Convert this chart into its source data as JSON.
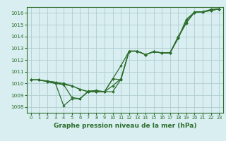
{
  "xlabel": "Graphe pression niveau de la mer (hPa)",
  "background_color": "#d8eef0",
  "grid_color": "#b0cdd0",
  "line_color": "#2d6e2d",
  "ylim": [
    1007.5,
    1016.5
  ],
  "xlim": [
    -0.5,
    23.5
  ],
  "yticks": [
    1008,
    1009,
    1010,
    1011,
    1012,
    1013,
    1014,
    1015,
    1016
  ],
  "xticks": [
    0,
    1,
    2,
    3,
    4,
    5,
    6,
    7,
    8,
    9,
    10,
    11,
    12,
    13,
    14,
    15,
    16,
    17,
    18,
    19,
    20,
    21,
    22,
    23
  ],
  "series": [
    [
      1010.3,
      1010.3,
      1010.2,
      1010.1,
      1010.0,
      1009.8,
      1009.5,
      1009.3,
      1009.3,
      1009.3,
      1010.4,
      1010.3,
      1012.75,
      1012.75,
      1012.45,
      1012.7,
      1012.6,
      1012.6,
      1013.85,
      1015.45,
      1016.05,
      1016.1,
      1016.2,
      1016.35
    ],
    [
      1010.3,
      1010.3,
      1010.2,
      1010.1,
      1009.9,
      1008.8,
      1008.7,
      1009.3,
      1009.3,
      1009.3,
      1009.3,
      1010.35,
      1012.75,
      1012.75,
      1012.45,
      1012.7,
      1012.6,
      1012.6,
      1013.85,
      1015.45,
      1016.05,
      1016.1,
      1016.2,
      1016.35
    ],
    [
      1010.3,
      1010.3,
      1010.15,
      1010.0,
      1008.1,
      1008.7,
      1008.7,
      1009.35,
      1009.4,
      1009.3,
      1009.8,
      1010.4,
      1012.75,
      1012.75,
      1012.45,
      1012.7,
      1012.6,
      1012.6,
      1014.0,
      1015.2,
      1016.1,
      1016.1,
      1016.3,
      1016.35
    ],
    [
      1010.3,
      1010.3,
      1010.15,
      1010.0,
      1009.9,
      1009.8,
      1009.5,
      1009.3,
      1009.3,
      1009.3,
      1010.4,
      1011.5,
      1012.75,
      1012.75,
      1012.45,
      1012.7,
      1012.6,
      1012.6,
      1013.9,
      1015.15,
      1016.05,
      1016.1,
      1016.25,
      1016.35
    ]
  ]
}
